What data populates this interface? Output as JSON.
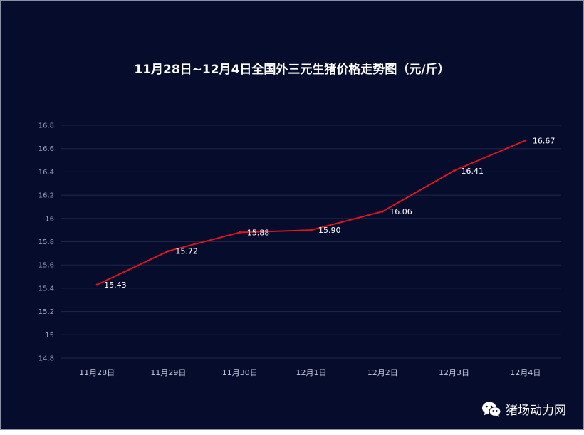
{
  "chart_data": {
    "type": "line",
    "title": "11月28日~12月4日全国外三元生猪价格走势图（元/斤）",
    "categories": [
      "11月28日",
      "11月29日",
      "11月30日",
      "12月1日",
      "12月2日",
      "12月3日",
      "12月4日"
    ],
    "series": [
      {
        "values": [
          15.43,
          15.72,
          15.88,
          15.9,
          16.06,
          16.41,
          16.67
        ],
        "labels": [
          "15.43",
          "15.72",
          "15.88",
          "15.90",
          "16.06",
          "16.41",
          "16.67"
        ],
        "color": "#e3131b"
      }
    ],
    "ylim": [
      14.8,
      16.8
    ],
    "yticks": [
      14.8,
      15,
      15.2,
      15.4,
      15.6,
      15.8,
      16,
      16.2,
      16.4,
      16.6,
      16.8
    ],
    "ytick_labels": [
      "14.8",
      "15",
      "15.2",
      "15.4",
      "15.6",
      "15.8",
      "16",
      "16.2",
      "16.4",
      "16.6",
      "16.8"
    ],
    "xlabel": "",
    "ylabel": "",
    "grid": true,
    "legend": "none"
  },
  "colors": {
    "background": "#060c2c",
    "gridline": "#1f2747",
    "line": "#e3131b"
  },
  "watermark": {
    "icon": "wechat-icon",
    "text": "猪场动力网"
  }
}
